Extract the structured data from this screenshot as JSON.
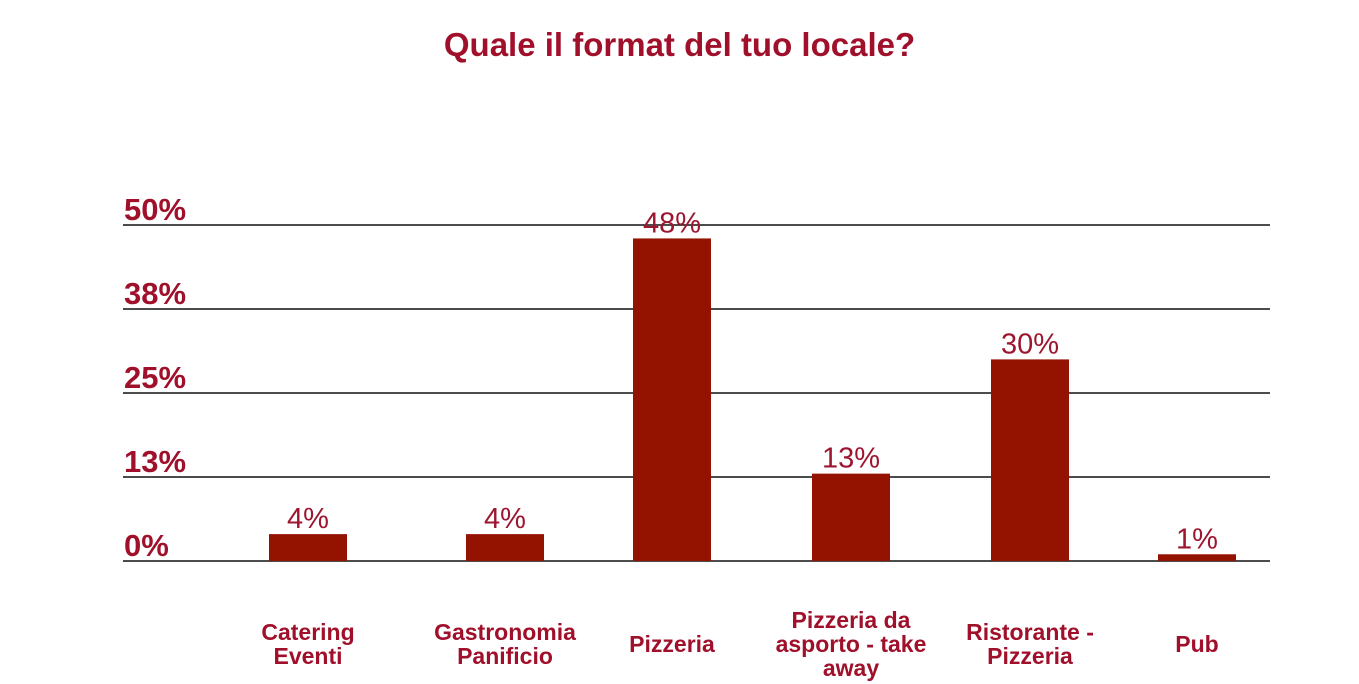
{
  "chart_data": {
    "type": "bar",
    "title": "Quale il format del tuo locale?",
    "categories": [
      [
        "Catering",
        "Eventi"
      ],
      [
        "Gastronomia",
        "Panificio"
      ],
      [
        "Pizzeria"
      ],
      [
        "Pizzeria da",
        "asporto - take",
        "away"
      ],
      [
        "Ristorante -",
        "Pizzeria"
      ],
      [
        "Pub"
      ]
    ],
    "values": [
      4,
      4,
      48,
      13,
      30,
      1
    ],
    "value_labels": [
      "4%",
      "4%",
      "48%",
      "13%",
      "30%",
      "1%"
    ],
    "yticks": [
      "0%",
      "13%",
      "25%",
      "38%",
      "50%"
    ],
    "ylim": [
      0,
      50
    ],
    "grid": true,
    "bar_color": "#931200",
    "accent_color": "#a0102a"
  }
}
